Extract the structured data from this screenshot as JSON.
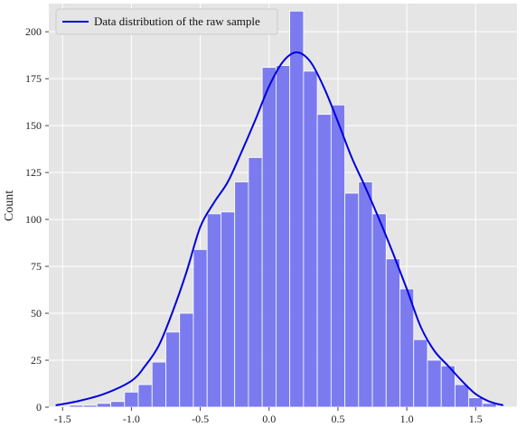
{
  "chart_data": {
    "type": "bar",
    "title": "",
    "xlabel": "",
    "ylabel": "Count",
    "xlim": [
      -1.6,
      1.8
    ],
    "ylim": [
      0,
      215
    ],
    "x_ticks": [
      -1.5,
      -1.0,
      -0.5,
      0.0,
      0.5,
      1.0,
      1.5
    ],
    "x_tick_labels": [
      "-1.5",
      "-1.0",
      "-0.5",
      "0.0",
      "0.5",
      "1.0",
      "1.5"
    ],
    "y_ticks": [
      0,
      25,
      50,
      75,
      100,
      125,
      150,
      175,
      200
    ],
    "y_tick_labels": [
      "0",
      "25",
      "50",
      "75",
      "100",
      "125",
      "150",
      "175",
      "200"
    ],
    "grid": true,
    "legend_placement": "top-left",
    "bin_width": 0.1,
    "bin_starts": [
      -1.45,
      -1.35,
      -1.25,
      -1.15,
      -1.05,
      -0.95,
      -0.85,
      -0.75,
      -0.65,
      -0.55,
      -0.45,
      -0.35,
      -0.25,
      -0.15,
      -0.05,
      0.05,
      0.15,
      0.25,
      0.35,
      0.45,
      0.55,
      0.65,
      0.75,
      0.85,
      0.95,
      1.05,
      1.15,
      1.25,
      1.35,
      1.45,
      1.55
    ],
    "counts": [
      1,
      1,
      2,
      3,
      8,
      12,
      24,
      40,
      50,
      84,
      103,
      104,
      120,
      133,
      181,
      182,
      211,
      179,
      156,
      161,
      114,
      120,
      103,
      79,
      63,
      36,
      25,
      22,
      12,
      5,
      2
    ],
    "series": [
      {
        "name": "Data distribution of the raw sample",
        "type": "line",
        "color": "#0000dd",
        "x": [
          -1.55,
          -1.4,
          -1.2,
          -1.0,
          -0.9,
          -0.8,
          -0.7,
          -0.6,
          -0.5,
          -0.4,
          -0.3,
          -0.2,
          -0.1,
          0.0,
          0.1,
          0.2,
          0.3,
          0.4,
          0.5,
          0.6,
          0.7,
          0.8,
          0.9,
          1.0,
          1.1,
          1.2,
          1.3,
          1.4,
          1.5,
          1.6,
          1.7
        ],
        "y": [
          1,
          3,
          7,
          14,
          22,
          33,
          51,
          72,
          96,
          109,
          120,
          136,
          153,
          171,
          184,
          189,
          184,
          170,
          152,
          133,
          117,
          100,
          82,
          63,
          43,
          30,
          22,
          14,
          7,
          3,
          1
        ]
      }
    ],
    "colors": {
      "bar_fill": "#6f6ff0",
      "bar_edge": "#ffffff",
      "plot_background": "#e5e5e5",
      "grid": "#ffffff"
    }
  }
}
